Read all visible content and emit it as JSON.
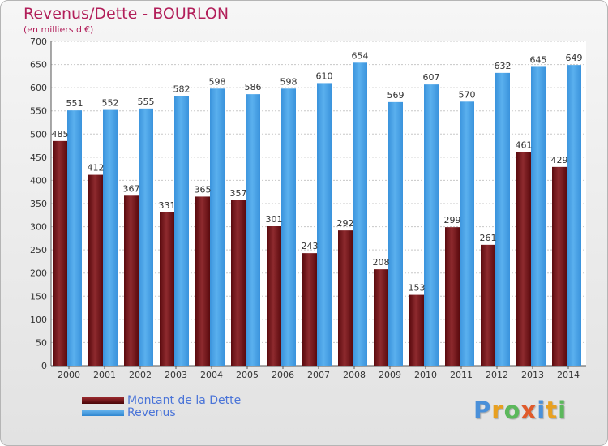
{
  "chart_data": {
    "type": "bar",
    "title": "Revenus/Dette - BOURLON",
    "subtitle": "(en milliers d'€)",
    "xlabel": "",
    "ylabel": "",
    "ylim": [
      0,
      700
    ],
    "yticks": [
      "0",
      "50",
      "100",
      "150",
      "200",
      "250",
      "300",
      "350",
      "400",
      "450",
      "500",
      "550",
      "600",
      "650",
      "700"
    ],
    "grid": true,
    "legend_position": "bottom-left",
    "categories": [
      "2000",
      "2001",
      "2002",
      "2003",
      "2004",
      "2005",
      "2006",
      "2007",
      "2008",
      "2009",
      "2010",
      "2011",
      "2012",
      "2013",
      "2014"
    ],
    "series": [
      {
        "name": "Montant de la Dette",
        "color": "#7a1a1e",
        "values": [
          485,
          412,
          367,
          331,
          365,
          357,
          301,
          243,
          292,
          208,
          153,
          299,
          261,
          461,
          429
        ]
      },
      {
        "name": "Revenus",
        "color": "#4da3e8",
        "values": [
          551,
          552,
          555,
          582,
          598,
          586,
          598,
          610,
          654,
          569,
          607,
          570,
          632,
          645,
          649
        ]
      }
    ]
  },
  "legend": {
    "debt_label": "Montant de la Dette",
    "revenue_label": "Revenus"
  },
  "logo": {
    "letters": [
      "P",
      "r",
      "o",
      "x",
      "i",
      "t",
      "i"
    ],
    "colors": [
      "#4a90d9",
      "#e8a020",
      "#5cb85c",
      "#e05a2a",
      "#4a90d9",
      "#e8a020",
      "#5cb85c"
    ]
  }
}
